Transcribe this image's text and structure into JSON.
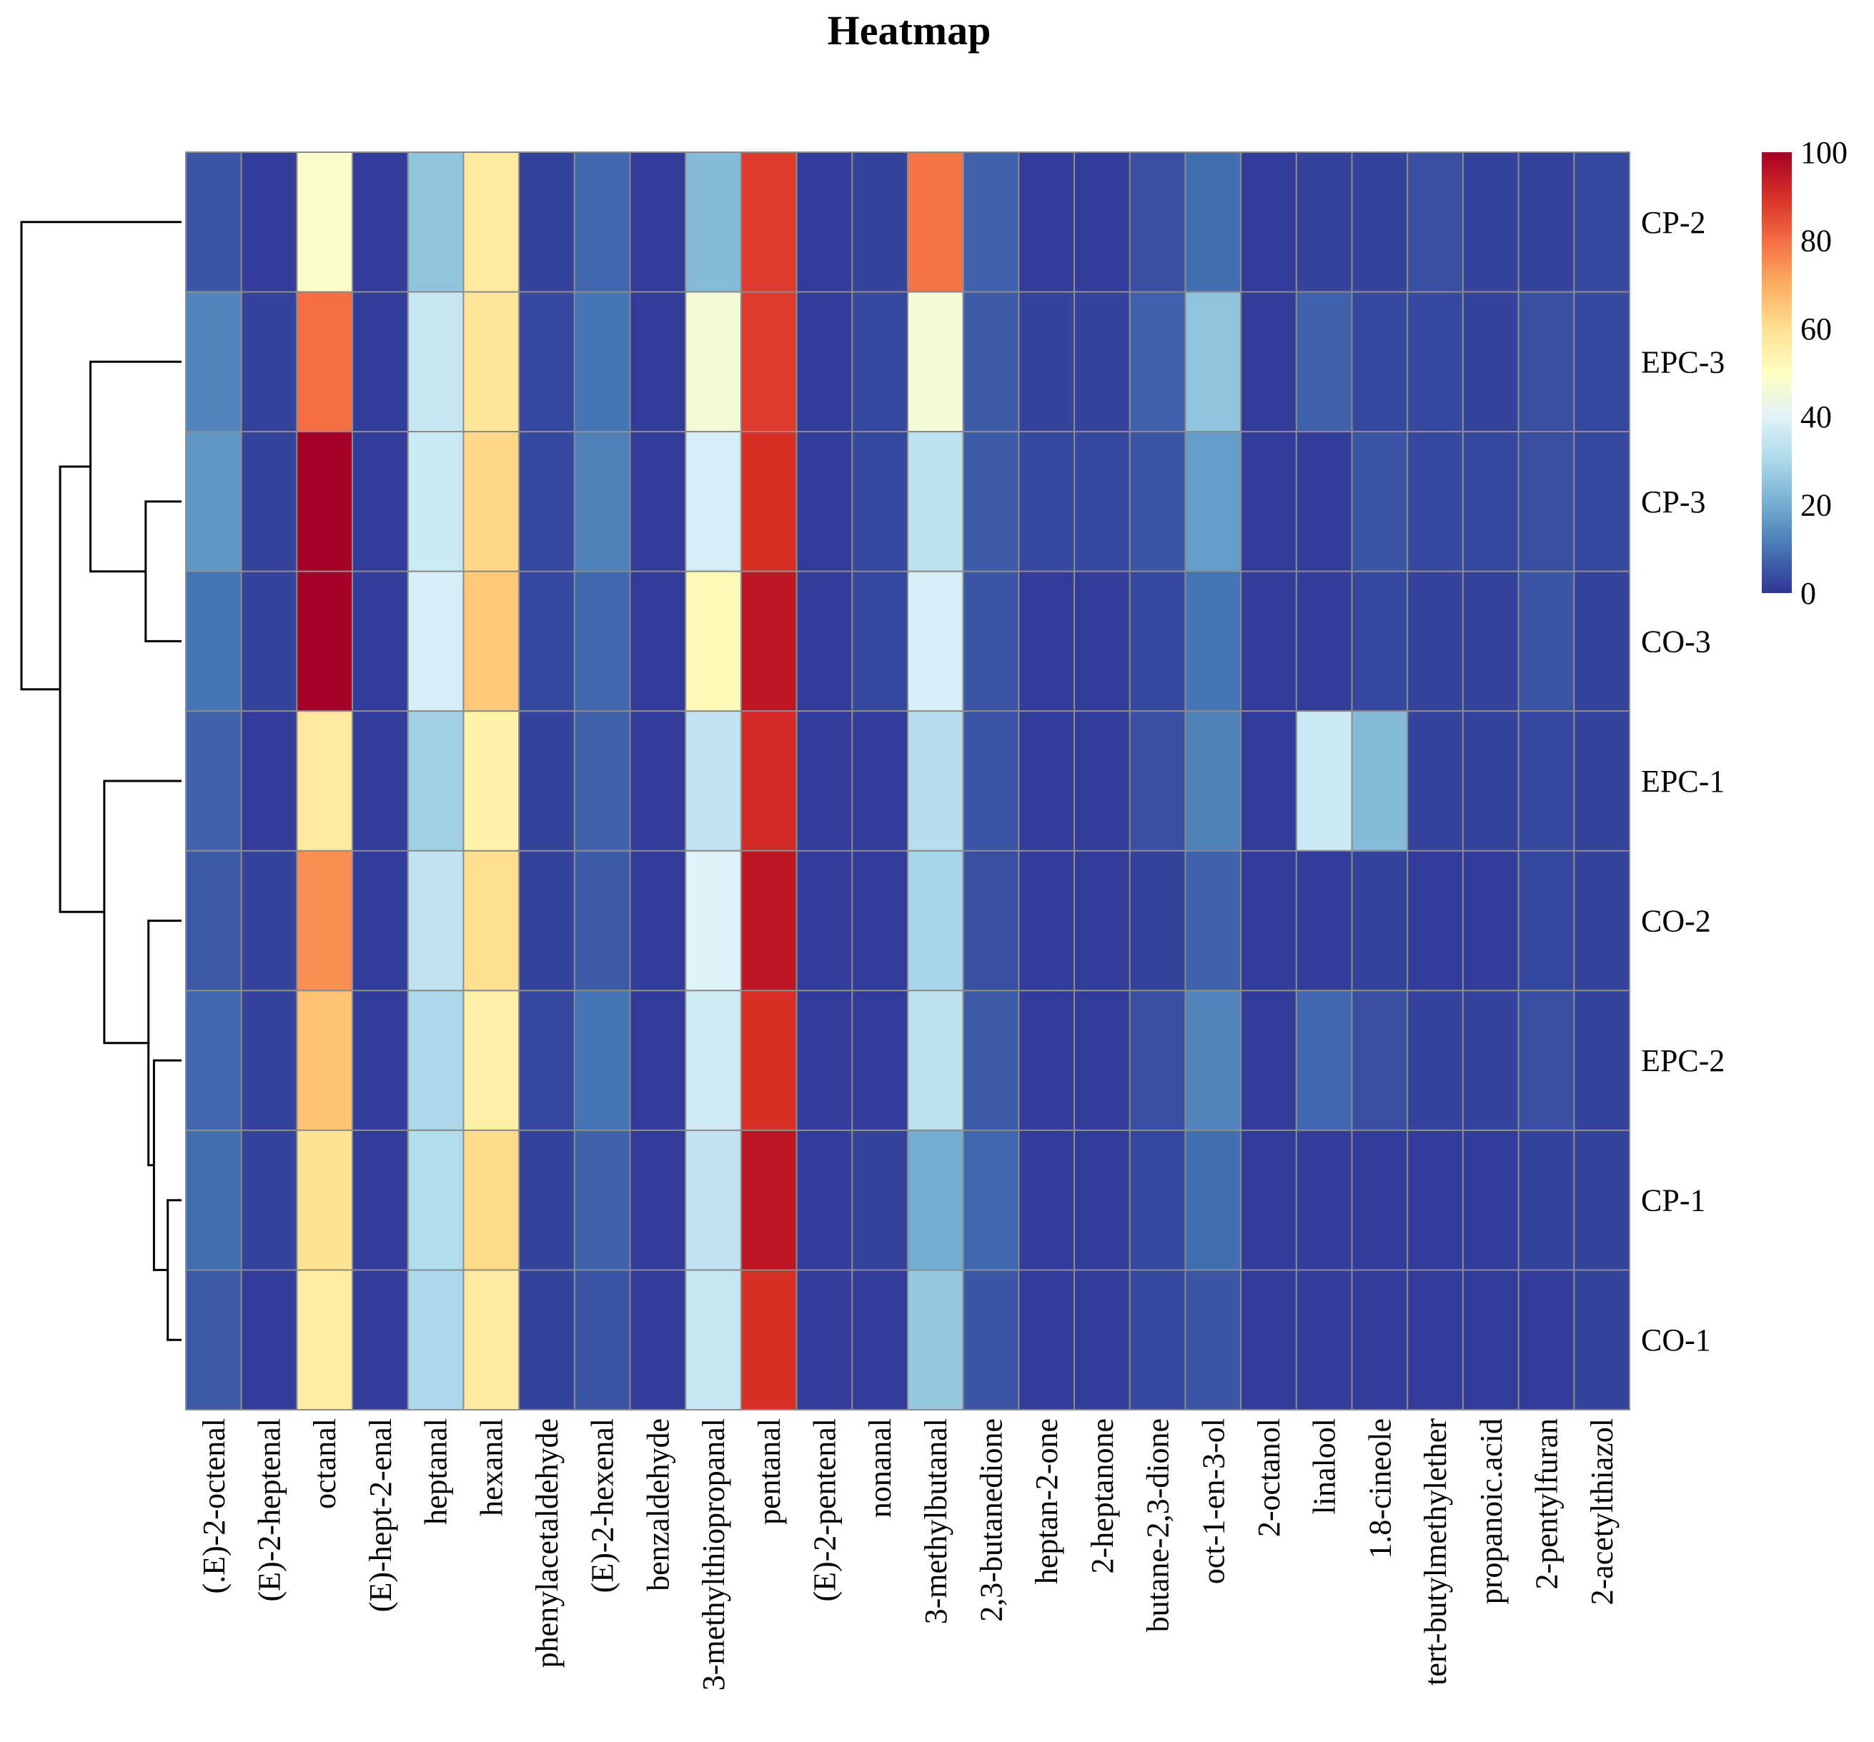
{
  "chart_data": {
    "type": "heatmap",
    "title": "Heatmap",
    "rows": [
      "CP-2",
      "EPC-3",
      "CP-3",
      "CO-3",
      "EPC-1",
      "CO-2",
      "EPC-2",
      "CP-1",
      "CO-1"
    ],
    "columns": [
      "(.E)-2-octenal",
      "(E)-2-heptenal",
      "octanal",
      "(E)-hept-2-enal",
      "heptanal",
      "hexanal",
      "phenylacetaldehyde",
      "(E)-2-hexenal",
      "benzaldehyde",
      "3-methylthiopropanal",
      "pentanal",
      "(E)-2-pentenal",
      "nonanal",
      "3-methylbutanal",
      "2,3-butanedione",
      "heptan-2-one",
      "2-heptanone",
      "butane-2,3-dione",
      "oct-1-en-3-ol",
      "2-octanol",
      "linalool",
      "1.8-cineole",
      "tert-butylmethylether",
      "propanoic.acid",
      "2-pentylfuran",
      "2-acetylthiazol"
    ],
    "values": [
      [
        5,
        1,
        48,
        1,
        25,
        57,
        2,
        8,
        1,
        23,
        88,
        1,
        2,
        79,
        7,
        1,
        1,
        4,
        9,
        1,
        2,
        2,
        4,
        2,
        2,
        3
      ],
      [
        13,
        2,
        80,
        1,
        35,
        58,
        3,
        10,
        1,
        46,
        88,
        1,
        3,
        46,
        6,
        2,
        2,
        7,
        25,
        1,
        7,
        3,
        3,
        2,
        4,
        3
      ],
      [
        16,
        2,
        100,
        1,
        36,
        62,
        3,
        12,
        1,
        38,
        90,
        1,
        3,
        33,
        6,
        3,
        3,
        5,
        17,
        1,
        1,
        5,
        3,
        3,
        4,
        3
      ],
      [
        10,
        2,
        100,
        1,
        38,
        65,
        3,
        8,
        1,
        52,
        95,
        1,
        3,
        38,
        5,
        1,
        1,
        3,
        10,
        1,
        1,
        3,
        2,
        2,
        5,
        2
      ],
      [
        7,
        1,
        57,
        1,
        28,
        54,
        2,
        7,
        1,
        34,
        91,
        1,
        1,
        32,
        5,
        1,
        1,
        4,
        12,
        1,
        36,
        23,
        2,
        2,
        3,
        2
      ],
      [
        6,
        2,
        75,
        1,
        34,
        60,
        2,
        6,
        1,
        40,
        95,
        1,
        1,
        29,
        4,
        1,
        1,
        2,
        7,
        1,
        1,
        2,
        1,
        1,
        3,
        2
      ],
      [
        8,
        2,
        66,
        1,
        30,
        55,
        3,
        10,
        1,
        37,
        90,
        1,
        1,
        33,
        6,
        1,
        1,
        4,
        13,
        1,
        8,
        4,
        2,
        2,
        4,
        2
      ],
      [
        9,
        2,
        59,
        1,
        31,
        61,
        2,
        7,
        1,
        34,
        95,
        1,
        2,
        20,
        8,
        1,
        1,
        3,
        9,
        1,
        1,
        1,
        1,
        1,
        2,
        2
      ],
      [
        6,
        1,
        56,
        1,
        30,
        57,
        2,
        5,
        1,
        35,
        90,
        1,
        1,
        26,
        5,
        1,
        1,
        3,
        5,
        1,
        1,
        1,
        1,
        1,
        1,
        2
      ]
    ],
    "colorbar": {
      "min": 0,
      "max": 100,
      "ticks": [
        "0",
        "20",
        "40",
        "60",
        "80",
        "100"
      ],
      "colors": [
        "#313695",
        "#4575b4",
        "#74add1",
        "#abd9e9",
        "#e0f3f8",
        "#ffffbf",
        "#fee090",
        "#fdae61",
        "#f46d43",
        "#d73027",
        "#a50026"
      ]
    },
    "dendrogram": {
      "merges": [
        [
          7,
          8,
          0.05
        ],
        [
          6,
          7,
          0.1
        ],
        [
          5,
          6,
          0.12
        ],
        [
          2,
          3,
          0.13
        ],
        [
          4,
          5,
          0.28
        ],
        [
          1,
          2,
          0.33
        ],
        [
          1,
          4,
          0.44
        ],
        [
          0,
          1,
          0.58
        ]
      ]
    },
    "colors": {
      "grid": "#8c8c8c",
      "tree": "#000000",
      "text": "#000000"
    }
  }
}
